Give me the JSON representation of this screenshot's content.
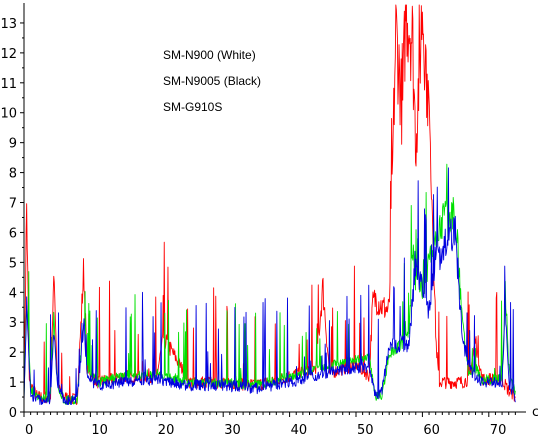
{
  "chart_data": {
    "type": "line",
    "title": "",
    "xlabel": "c",
    "ylabel": "",
    "xlim": [
      0,
      75
    ],
    "ylim": [
      0,
      13.6
    ],
    "x_ticks": [
      "0",
      "10",
      "20",
      "30",
      "40",
      "50",
      "60",
      "70"
    ],
    "y_ticks": [
      "0",
      "1",
      "2",
      "3",
      "4",
      "5",
      "6",
      "7",
      "8",
      "9",
      "10",
      "11",
      "12",
      "13"
    ],
    "grid": false,
    "legend_position": "top-center",
    "series": [
      {
        "name": "SM-N900 (White)",
        "color": "#ff0000",
        "noise": 0.55,
        "points": [
          [
            0,
            0.8
          ],
          [
            0.4,
            6.9
          ],
          [
            0.8,
            1.0
          ],
          [
            2,
            0.5
          ],
          [
            4,
            0.5
          ],
          [
            4.5,
            5.0
          ],
          [
            5,
            1.0
          ],
          [
            6,
            0.5
          ],
          [
            8,
            0.4
          ],
          [
            9,
            4.8
          ],
          [
            9.5,
            1.5
          ],
          [
            11,
            1.0
          ],
          [
            15,
            1.2
          ],
          [
            20,
            1.2
          ],
          [
            21,
            2.5
          ],
          [
            25,
            1.0
          ],
          [
            30,
            1.0
          ],
          [
            35,
            0.9
          ],
          [
            40,
            1.2
          ],
          [
            44,
            1.5
          ],
          [
            45,
            4.2
          ],
          [
            46,
            1.3
          ],
          [
            50,
            1.6
          ],
          [
            52,
            1.2
          ],
          [
            52.5,
            3.6
          ],
          [
            53,
            3.8
          ],
          [
            54,
            3.5
          ],
          [
            55,
            3.4
          ],
          [
            55.6,
            9.0
          ],
          [
            56,
            12.8
          ],
          [
            57,
            10.0
          ],
          [
            57.5,
            13.6
          ],
          [
            58.5,
            12.5
          ],
          [
            59,
            9.0
          ],
          [
            60,
            13.6
          ],
          [
            61,
            10.0
          ],
          [
            61.5,
            7.0
          ],
          [
            62,
            2.5
          ],
          [
            62.5,
            1.0
          ],
          [
            64,
            1.0
          ],
          [
            66,
            1.0
          ],
          [
            67,
            1.1
          ],
          [
            68,
            2.4
          ],
          [
            69,
            1.1
          ],
          [
            72,
            1.1
          ],
          [
            73,
            0.7
          ],
          [
            74,
            0.5
          ]
        ]
      },
      {
        "name": "SM-N9005 (Black)",
        "color": "#00e000",
        "noise": 0.45,
        "points": [
          [
            0,
            0.6
          ],
          [
            0.4,
            3.8
          ],
          [
            1,
            0.8
          ],
          [
            2,
            0.5
          ],
          [
            4,
            0.5
          ],
          [
            4.5,
            3.2
          ],
          [
            5,
            1.0
          ],
          [
            6,
            0.4
          ],
          [
            8,
            0.4
          ],
          [
            9,
            3.2
          ],
          [
            9.5,
            1.5
          ],
          [
            11,
            1.0
          ],
          [
            15,
            1.2
          ],
          [
            20,
            1.3
          ],
          [
            25,
            1.0
          ],
          [
            30,
            1.0
          ],
          [
            35,
            0.9
          ],
          [
            40,
            1.2
          ],
          [
            45,
            1.5
          ],
          [
            50,
            1.8
          ],
          [
            52,
            1.8
          ],
          [
            53,
            0.5
          ],
          [
            54,
            0.6
          ],
          [
            55,
            2.0
          ],
          [
            57,
            2.3
          ],
          [
            58,
            2.5
          ],
          [
            58.5,
            5.4
          ],
          [
            59,
            4.5
          ],
          [
            60,
            4.0
          ],
          [
            61,
            5.2
          ],
          [
            62,
            6.0
          ],
          [
            63,
            6.4
          ],
          [
            64,
            6.5
          ],
          [
            65,
            6.6
          ],
          [
            66,
            3.0
          ],
          [
            67,
            1.3
          ],
          [
            68,
            1.5
          ],
          [
            69,
            1.1
          ],
          [
            72,
            1.1
          ],
          [
            72.5,
            4.2
          ],
          [
            73,
            1.5
          ],
          [
            74,
            0.6
          ]
        ]
      },
      {
        "name": "SM-G910S",
        "color": "#0000e0",
        "noise": 0.5,
        "points": [
          [
            0,
            0.5
          ],
          [
            0.4,
            3.5
          ],
          [
            1,
            0.6
          ],
          [
            2,
            0.4
          ],
          [
            4,
            0.4
          ],
          [
            4.5,
            2.8
          ],
          [
            5,
            0.9
          ],
          [
            6,
            0.4
          ],
          [
            8,
            0.4
          ],
          [
            9,
            3.0
          ],
          [
            9.5,
            1.2
          ],
          [
            11,
            0.9
          ],
          [
            15,
            1.0
          ],
          [
            20,
            1.1
          ],
          [
            25,
            0.9
          ],
          [
            30,
            0.9
          ],
          [
            35,
            0.8
          ],
          [
            40,
            1.0
          ],
          [
            45,
            1.3
          ],
          [
            50,
            1.5
          ],
          [
            52,
            1.5
          ],
          [
            53,
            0.5
          ],
          [
            54,
            0.8
          ],
          [
            55,
            2.2
          ],
          [
            57,
            2.3
          ],
          [
            58,
            2.2
          ],
          [
            59,
            5.2
          ],
          [
            60,
            4.0
          ],
          [
            61,
            3.5
          ],
          [
            62,
            5.2
          ],
          [
            63,
            5.5
          ],
          [
            64,
            6.0
          ],
          [
            65,
            6.0
          ],
          [
            66,
            2.5
          ],
          [
            67,
            1.5
          ],
          [
            68,
            1.2
          ],
          [
            69,
            1.0
          ],
          [
            72,
            1.0
          ],
          [
            72.5,
            3.5
          ],
          [
            73,
            1.0
          ],
          [
            74,
            0.5
          ]
        ]
      }
    ]
  }
}
